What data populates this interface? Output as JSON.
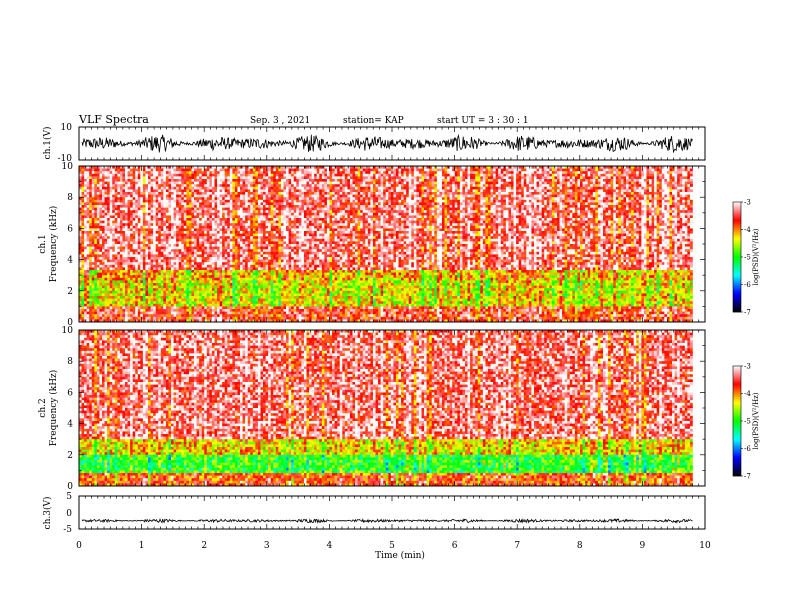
{
  "header": {
    "title": "VLF Spectra",
    "date": "Sep. 3 , 2021",
    "station": "station= KAP",
    "start": "start  UT  =   3  : 30 : 1"
  },
  "colors": {
    "background": "#ffffff",
    "axes": "#000000",
    "waveform": "#000000"
  },
  "chart_data": [
    {
      "type": "line",
      "panel": "ch1-waveform",
      "ylabel": "ch.1(V)",
      "ylim": [
        -10,
        10
      ],
      "y_ticks": [
        "10",
        "-10"
      ],
      "xlim": [
        0,
        10
      ],
      "trace_extent_min": 9.8,
      "amplitude_range_v": [
        -6,
        6
      ]
    },
    {
      "type": "heatmap",
      "panel": "ch1-spectrogram",
      "ylabel": "ch.1\nFrequency  (kHz)",
      "ylabel_lines": [
        "ch.1",
        "Frequency  (kHz)"
      ],
      "ylim": [
        0,
        10
      ],
      "y_ticks": [
        "0",
        "2",
        "4",
        "6",
        "8",
        "10"
      ],
      "xlim": [
        0,
        10
      ],
      "data_extent_min": 9.8,
      "colorbar": {
        "label": "log(PSD)(V²/Hz)",
        "range": [
          -7,
          -3
        ],
        "ticks": [
          "-3",
          "-4",
          "-5",
          "-6",
          "-7"
        ],
        "colors": [
          "#ffffff",
          "#ff0000",
          "#ffff00",
          "#00ff00",
          "#00ffff",
          "#0000ff",
          "#000000"
        ]
      },
      "bands_khz": [
        {
          "from": 0,
          "to": 1.0,
          "level": -3.6
        },
        {
          "from": 1.0,
          "to": 2.6,
          "level": -4.4
        },
        {
          "from": 2.6,
          "to": 3.4,
          "level": -4.2
        },
        {
          "from": 3.4,
          "to": 10,
          "level": -3.4
        }
      ]
    },
    {
      "type": "heatmap",
      "panel": "ch2-spectrogram",
      "ylabel": "ch.2\nFrequency  (kHz)",
      "ylabel_lines": [
        "ch.2",
        "Frequency  (kHz)"
      ],
      "ylim": [
        0,
        10
      ],
      "y_ticks": [
        "0",
        "2",
        "4",
        "6",
        "8",
        "10"
      ],
      "xlim": [
        0,
        10
      ],
      "data_extent_min": 9.8,
      "colorbar": {
        "label": "log(PSD)(V²/Hz)",
        "range": [
          -7,
          -3
        ],
        "ticks": [
          "-3",
          "-4",
          "-5",
          "-6",
          "-7"
        ],
        "colors": [
          "#ffffff",
          "#ff0000",
          "#ffff00",
          "#00ff00",
          "#00ffff",
          "#0000ff",
          "#000000"
        ]
      },
      "bands_khz": [
        {
          "from": 0,
          "to": 0.8,
          "level": -3.8
        },
        {
          "from": 0.8,
          "to": 2.0,
          "level": -5.0
        },
        {
          "from": 2.0,
          "to": 3.0,
          "level": -4.3
        },
        {
          "from": 3.0,
          "to": 10,
          "level": -3.4
        }
      ]
    },
    {
      "type": "line",
      "panel": "ch3-waveform",
      "ylabel": "ch.3(V)",
      "ylim": [
        -5,
        5
      ],
      "y_ticks": [
        "5",
        "0",
        "-5"
      ],
      "xlim": [
        0,
        10
      ],
      "trace_extent_min": 9.8,
      "trace_level_v": -2.5,
      "amplitude_range_v": [
        -3.2,
        -1.8
      ],
      "xlabel": "Time  (min)",
      "x_ticks": [
        "0",
        "1",
        "2",
        "3",
        "4",
        "5",
        "6",
        "7",
        "8",
        "9",
        "10"
      ]
    }
  ]
}
